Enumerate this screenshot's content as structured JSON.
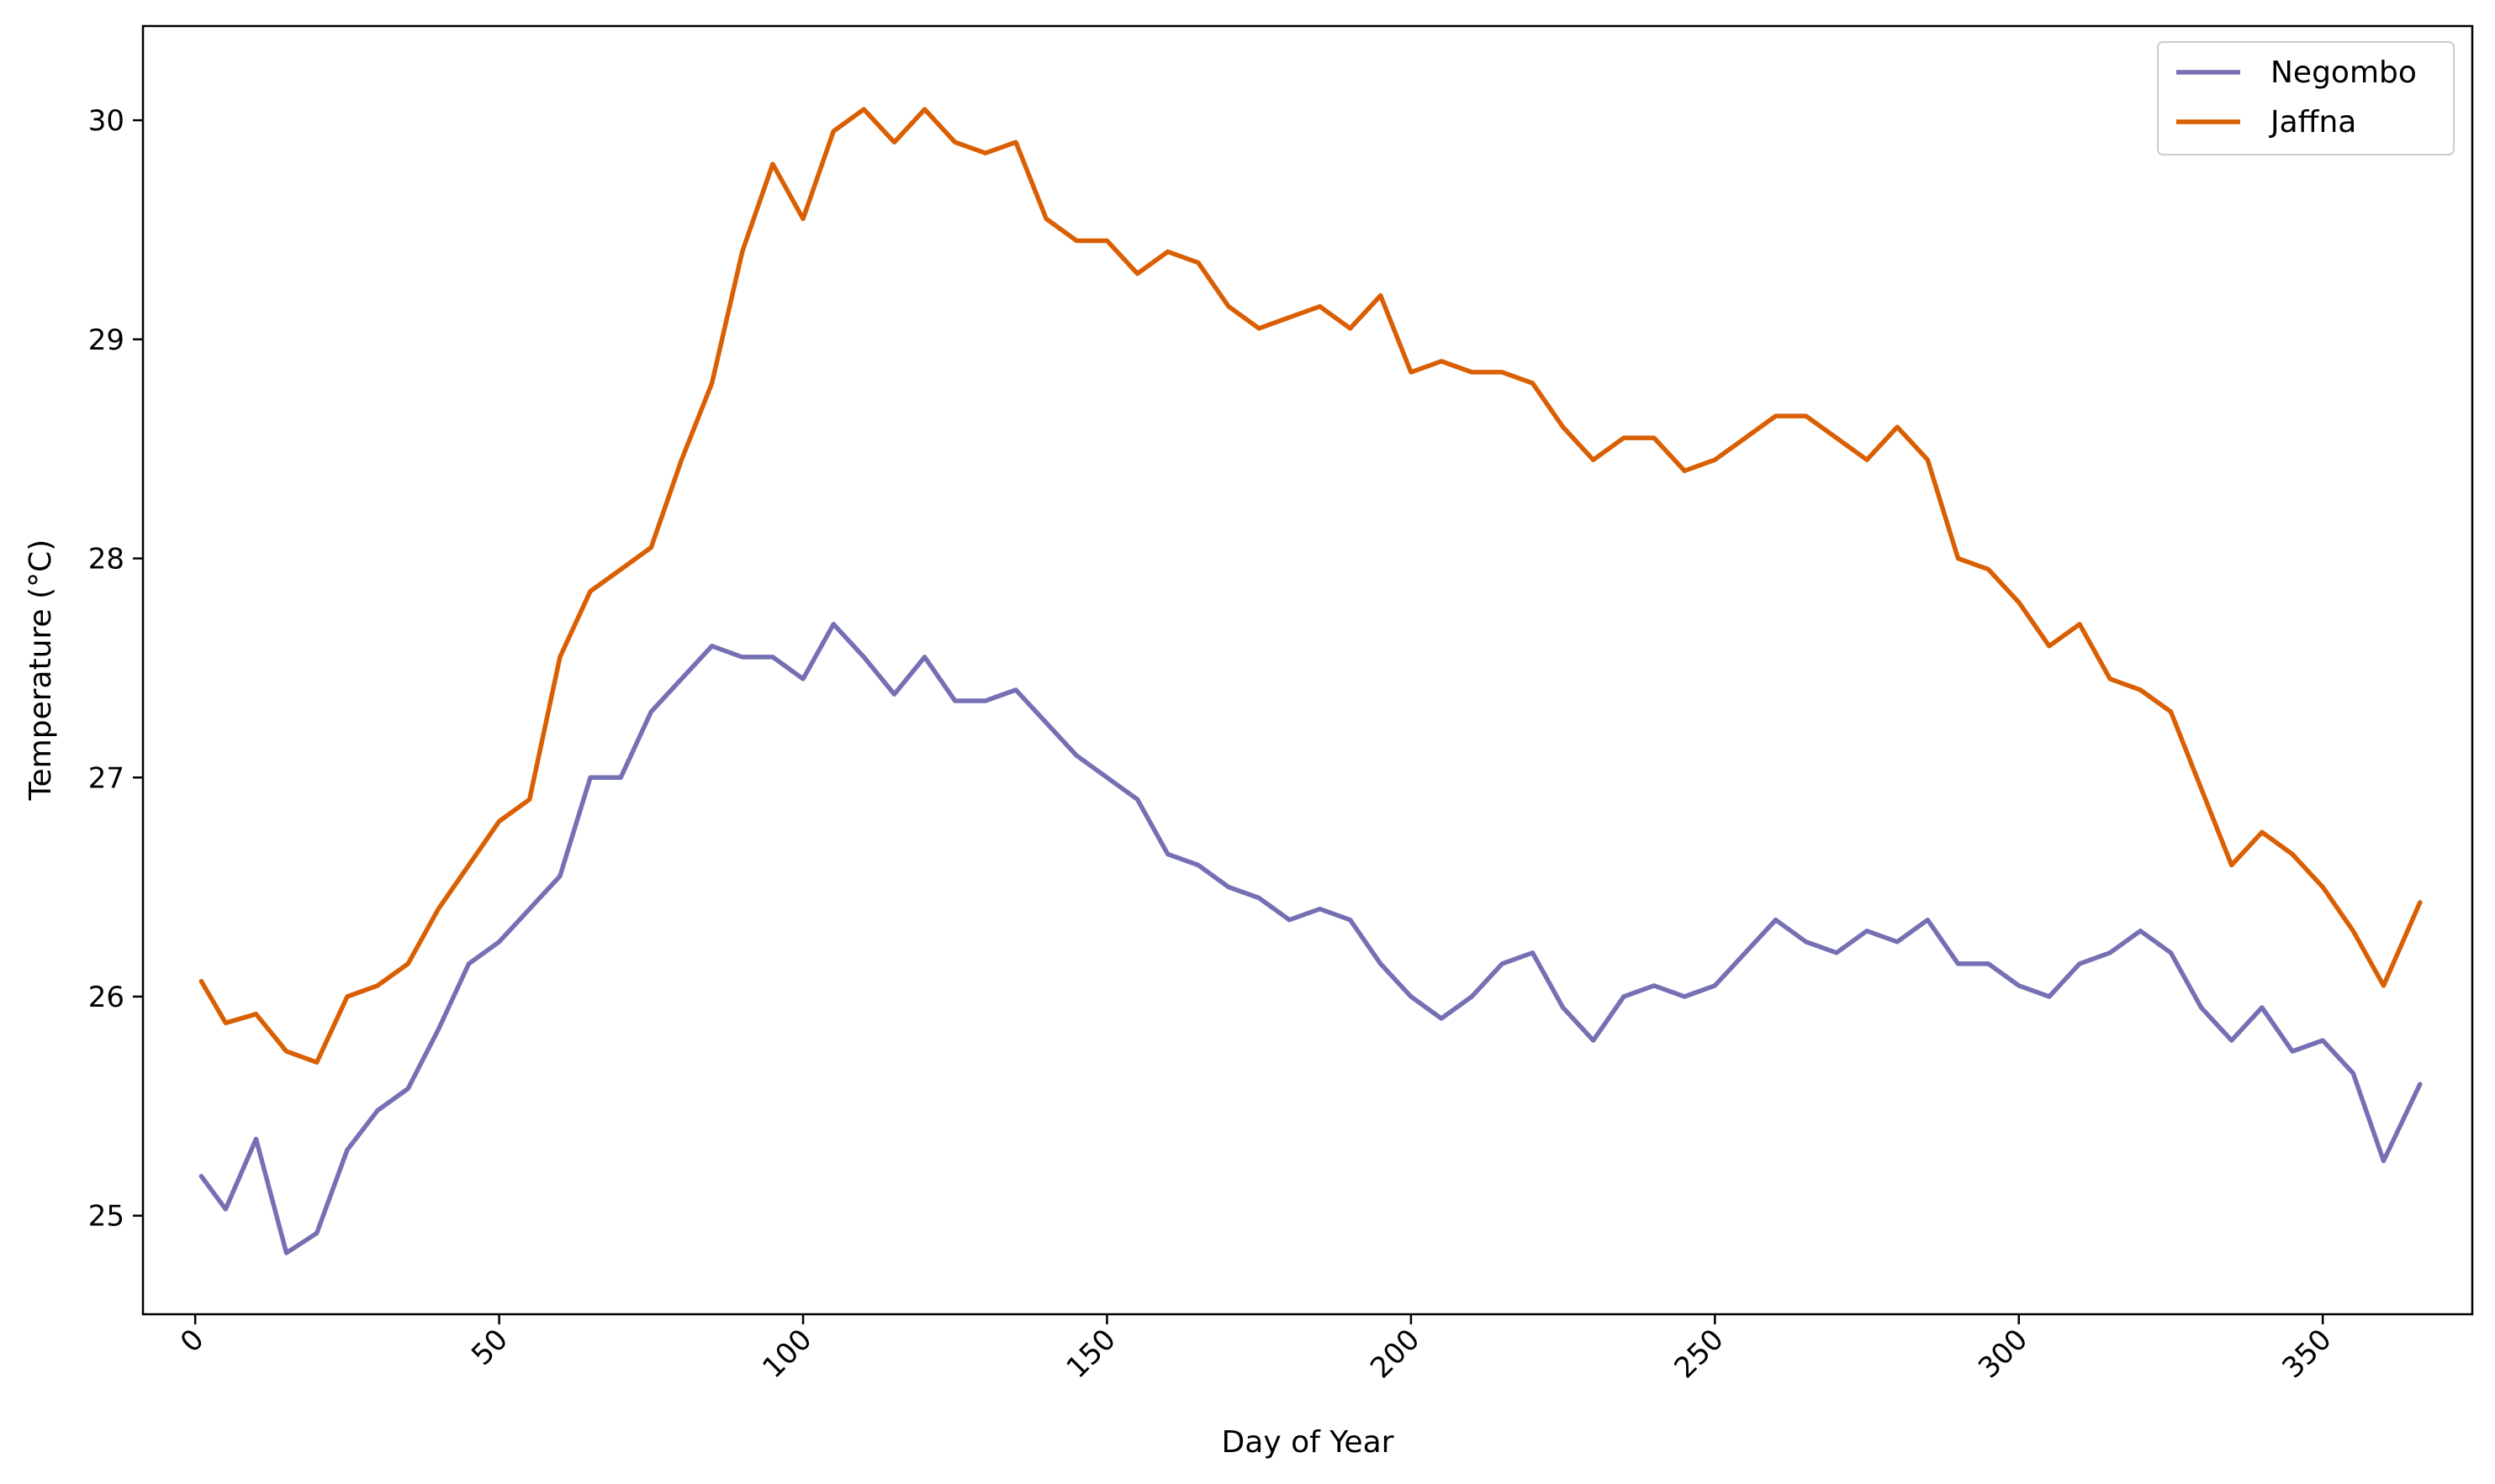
{
  "chart_data": {
    "type": "line",
    "title": "",
    "xlabel": "Day of Year",
    "ylabel": "Temperature (°C)",
    "xlim": [
      -8.6,
      374.6
    ],
    "ylim": [
      24.55,
      30.43
    ],
    "xticks": [
      0,
      50,
      100,
      150,
      200,
      250,
      300,
      350
    ],
    "yticks": [
      25,
      26,
      27,
      28,
      29,
      30
    ],
    "grid": false,
    "legend_position": "top-right",
    "x": [
      1,
      5,
      10,
      15,
      20,
      25,
      30,
      35,
      40,
      45,
      50,
      55,
      60,
      65,
      70,
      75,
      80,
      85,
      90,
      95,
      100,
      105,
      110,
      115,
      120,
      125,
      130,
      135,
      140,
      145,
      150,
      155,
      160,
      165,
      170,
      175,
      180,
      185,
      190,
      195,
      200,
      205,
      210,
      215,
      220,
      225,
      230,
      235,
      240,
      245,
      250,
      255,
      260,
      265,
      270,
      275,
      280,
      285,
      290,
      295,
      300,
      305,
      310,
      315,
      320,
      325,
      330,
      335,
      340,
      345,
      350,
      355,
      360,
      366
    ],
    "series": [
      {
        "name": "Negombo",
        "color": "#7570b3",
        "values": [
          25.18,
          25.03,
          25.35,
          24.83,
          24.92,
          25.3,
          25.48,
          25.58,
          25.85,
          26.15,
          26.25,
          26.4,
          26.55,
          27.0,
          27.0,
          27.3,
          27.45,
          27.6,
          27.55,
          27.55,
          27.45,
          27.7,
          27.55,
          27.38,
          27.55,
          27.35,
          27.35,
          27.4,
          27.25,
          27.1,
          27.0,
          26.9,
          26.65,
          26.6,
          26.5,
          26.45,
          26.35,
          26.4,
          26.35,
          26.15,
          26.0,
          25.9,
          26.0,
          26.15,
          26.2,
          25.95,
          25.8,
          26.0,
          26.05,
          26.0,
          26.05,
          26.2,
          26.35,
          26.25,
          26.2,
          26.3,
          26.25,
          26.35,
          26.15,
          26.15,
          26.05,
          26.0,
          26.15,
          26.2,
          26.3,
          26.2,
          25.95,
          25.8,
          25.95,
          25.75,
          25.8,
          25.65,
          25.25,
          25.6
        ]
      },
      {
        "name": "Jaffna",
        "color": "#d95f02",
        "values": [
          26.07,
          25.88,
          25.92,
          25.75,
          25.7,
          26.0,
          26.05,
          26.15,
          26.4,
          26.6,
          26.8,
          26.9,
          27.55,
          27.85,
          27.95,
          28.05,
          28.45,
          28.8,
          29.4,
          29.8,
          29.55,
          29.95,
          30.05,
          29.9,
          30.05,
          29.9,
          29.85,
          29.9,
          29.55,
          29.45,
          29.45,
          29.3,
          29.4,
          29.35,
          29.15,
          29.05,
          29.1,
          29.15,
          29.05,
          29.2,
          28.85,
          28.9,
          28.85,
          28.85,
          28.8,
          28.6,
          28.45,
          28.55,
          28.55,
          28.4,
          28.45,
          28.55,
          28.65,
          28.65,
          28.55,
          28.45,
          28.6,
          28.45,
          28.0,
          27.95,
          27.8,
          27.6,
          27.7,
          27.45,
          27.4,
          27.3,
          26.95,
          26.6,
          26.75,
          26.65,
          26.5,
          26.3,
          26.05,
          26.43
        ]
      }
    ]
  }
}
